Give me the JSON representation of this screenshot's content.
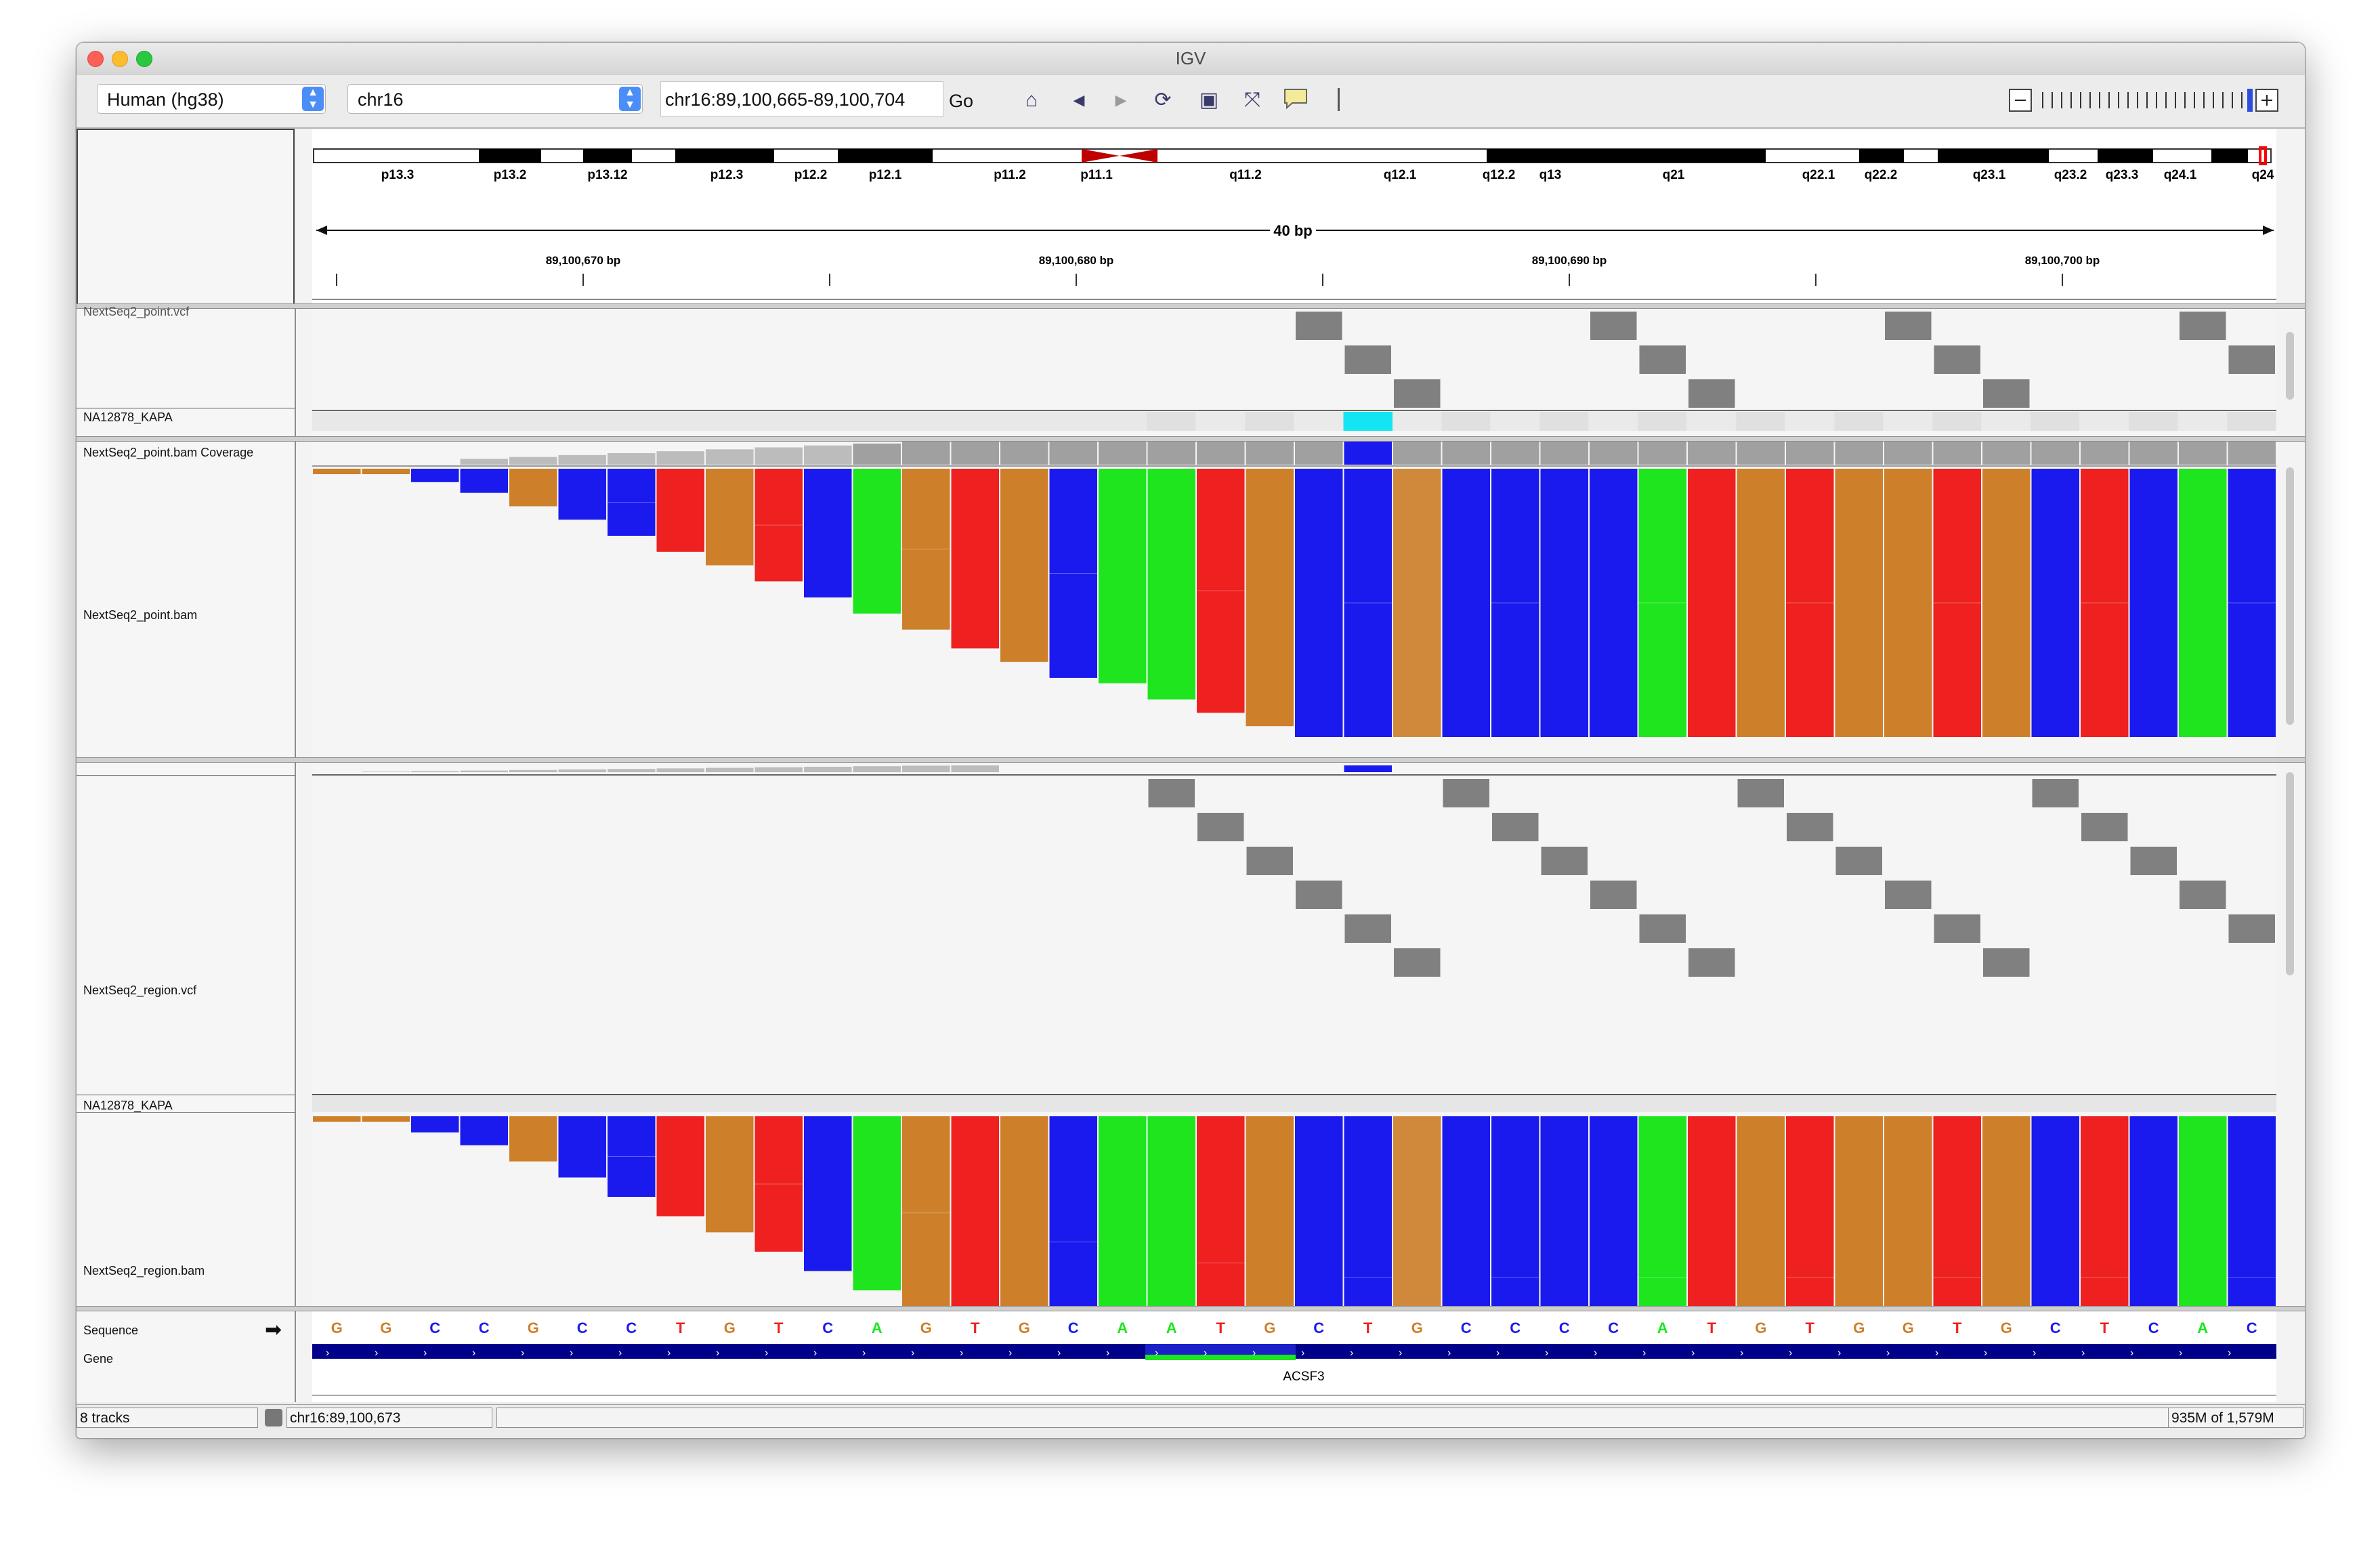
{
  "window": {
    "title": "IGV"
  },
  "toolbar": {
    "genome": "Human (hg38)",
    "chromosome": "chr16",
    "locus": "chr16:89,100,665-89,100,704",
    "go_label": "Go",
    "icons": [
      "home-icon",
      "back-icon",
      "forward-icon",
      "refresh-icon",
      "roi-icon",
      "fit-icon",
      "popup-text-icon",
      "divider"
    ]
  },
  "ideogram": {
    "bands": [
      "p13.3",
      "p13.2",
      "p13.12",
      "p12.3",
      "p12.2",
      "p12.1",
      "p11.2",
      "p11.1",
      "q11.2",
      "q12.1",
      "q12.2",
      "q13",
      "q21",
      "q22.1",
      "q22.2",
      "q23.1",
      "q23.2",
      "q23.3",
      "q24.1",
      "q24"
    ]
  },
  "ruler": {
    "span_label": "40 bp",
    "ticks": [
      "89,100,670 bp",
      "89,100,680 bp",
      "89,100,690 bp",
      "89,100,700 bp"
    ]
  },
  "tracks": {
    "vcf1_name": "NextSeq2_point.vcf",
    "sample1": "NA12878_KAPA",
    "coverage1": "NextSeq2_point.bam Coverage",
    "bam1": "NextSeq2_point.bam",
    "vcf2": "NextSeq2_region.vcf",
    "sample2": "NA12878_KAPA",
    "bam2": "NextSeq2_region.bam",
    "sequence": "Sequence",
    "gene": "Gene",
    "gene_name": "ACSF3"
  },
  "sequence": [
    "G",
    "G",
    "C",
    "C",
    "G",
    "C",
    "C",
    "T",
    "G",
    "T",
    "C",
    "A",
    "G",
    "T",
    "G",
    "C",
    "A",
    "A",
    "T",
    "G",
    "C",
    "T",
    "G",
    "C",
    "C",
    "C",
    "C",
    "A",
    "T",
    "G",
    "T",
    "G",
    "G",
    "T",
    "G",
    "C",
    "T",
    "C",
    "A",
    "C"
  ],
  "colors": {
    "A": "#1ee51e",
    "C": "#1a1aee",
    "G": "#cd7f2a",
    "T": "#ee2020",
    "variant": "#808080",
    "cyan": "#13e6f2"
  },
  "status": {
    "tracks": "8 tracks",
    "position": "chr16:89,100,673",
    "memory": "935M of 1,579M"
  }
}
